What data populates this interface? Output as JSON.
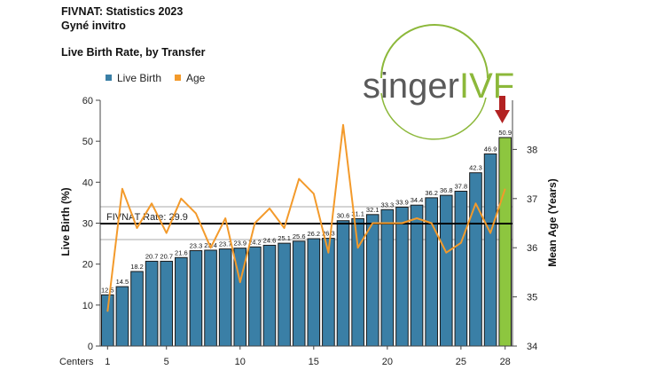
{
  "header": {
    "line1": "FIVNAT: Statistics 2023",
    "line2": "Gyné invitro",
    "chart_title": "Live Birth Rate, by Transfer"
  },
  "logo": {
    "part1": "singer",
    "part2": "IVF",
    "color1": "#5a5a5a",
    "color2": "#8cb83a"
  },
  "colors": {
    "bar": "#3a7fa6",
    "highlight_bar": "#8dc63f",
    "age_line": "#f39a2b",
    "ref_line": "#000000",
    "grid": "#bbbbbb",
    "arrow": "#b22222"
  },
  "chart_data": {
    "type": "bar",
    "title": "Live Birth Rate, by Transfer",
    "xlabel": "Centers",
    "ylabel": "Live Birth (%)",
    "y2label": "Mean Age (Years)",
    "ylim": [
      0,
      60
    ],
    "y2lim": [
      34,
      39
    ],
    "yticks": [
      0,
      10,
      20,
      30,
      40,
      50,
      60
    ],
    "y2ticks": [
      34,
      35,
      36,
      37,
      38
    ],
    "xticks": [
      "1",
      "5",
      "10",
      "15",
      "20",
      "25",
      "28"
    ],
    "categories": [
      1,
      2,
      3,
      4,
      5,
      6,
      7,
      8,
      9,
      10,
      11,
      12,
      13,
      14,
      15,
      16,
      17,
      18,
      19,
      20,
      21,
      22,
      23,
      24,
      25,
      26,
      27,
      28
    ],
    "series": [
      {
        "name": "Live Birth",
        "type": "bar",
        "values": [
          12.5,
          14.5,
          18.2,
          20.7,
          20.7,
          21.6,
          23.3,
          23.4,
          23.7,
          23.9,
          24.2,
          24.6,
          25.1,
          25.6,
          26.2,
          26.3,
          30.6,
          31.1,
          32.1,
          33.3,
          33.9,
          34.4,
          36.2,
          36.8,
          37.8,
          42.3,
          46.9,
          50.9
        ],
        "labels": [
          "12.5",
          "14.5",
          "18.2",
          "20.7",
          "20.7",
          "21.6",
          "23.3",
          "23.4",
          "23.7",
          "23.9",
          "24.2",
          "24.6",
          "25.1",
          "25.6",
          "26.2",
          "26.3",
          "30.6",
          "31.1",
          "32.1",
          "33.3",
          "33.9",
          "34.4",
          "36.2",
          "36.8",
          "37.8",
          "42.3",
          "46.9",
          "50.9"
        ]
      },
      {
        "name": "Age",
        "type": "line",
        "axis": "right",
        "values": [
          34.7,
          37.2,
          36.4,
          36.9,
          36.3,
          37.0,
          36.7,
          36.0,
          36.6,
          35.3,
          36.5,
          36.8,
          36.4,
          37.4,
          37.1,
          35.9,
          38.5,
          36.0,
          36.5,
          36.5,
          36.5,
          36.6,
          36.5,
          35.9,
          36.1,
          36.9,
          36.3,
          37.2
        ]
      }
    ],
    "reference_line": {
      "label": "FIVNAT Rate: 29.9",
      "value": 29.9
    },
    "band_lines": [
      26,
      34
    ],
    "highlight_category": 28,
    "legend": {
      "position": "top-left",
      "entries": [
        "Live Birth",
        "Age"
      ]
    },
    "grid": false
  }
}
